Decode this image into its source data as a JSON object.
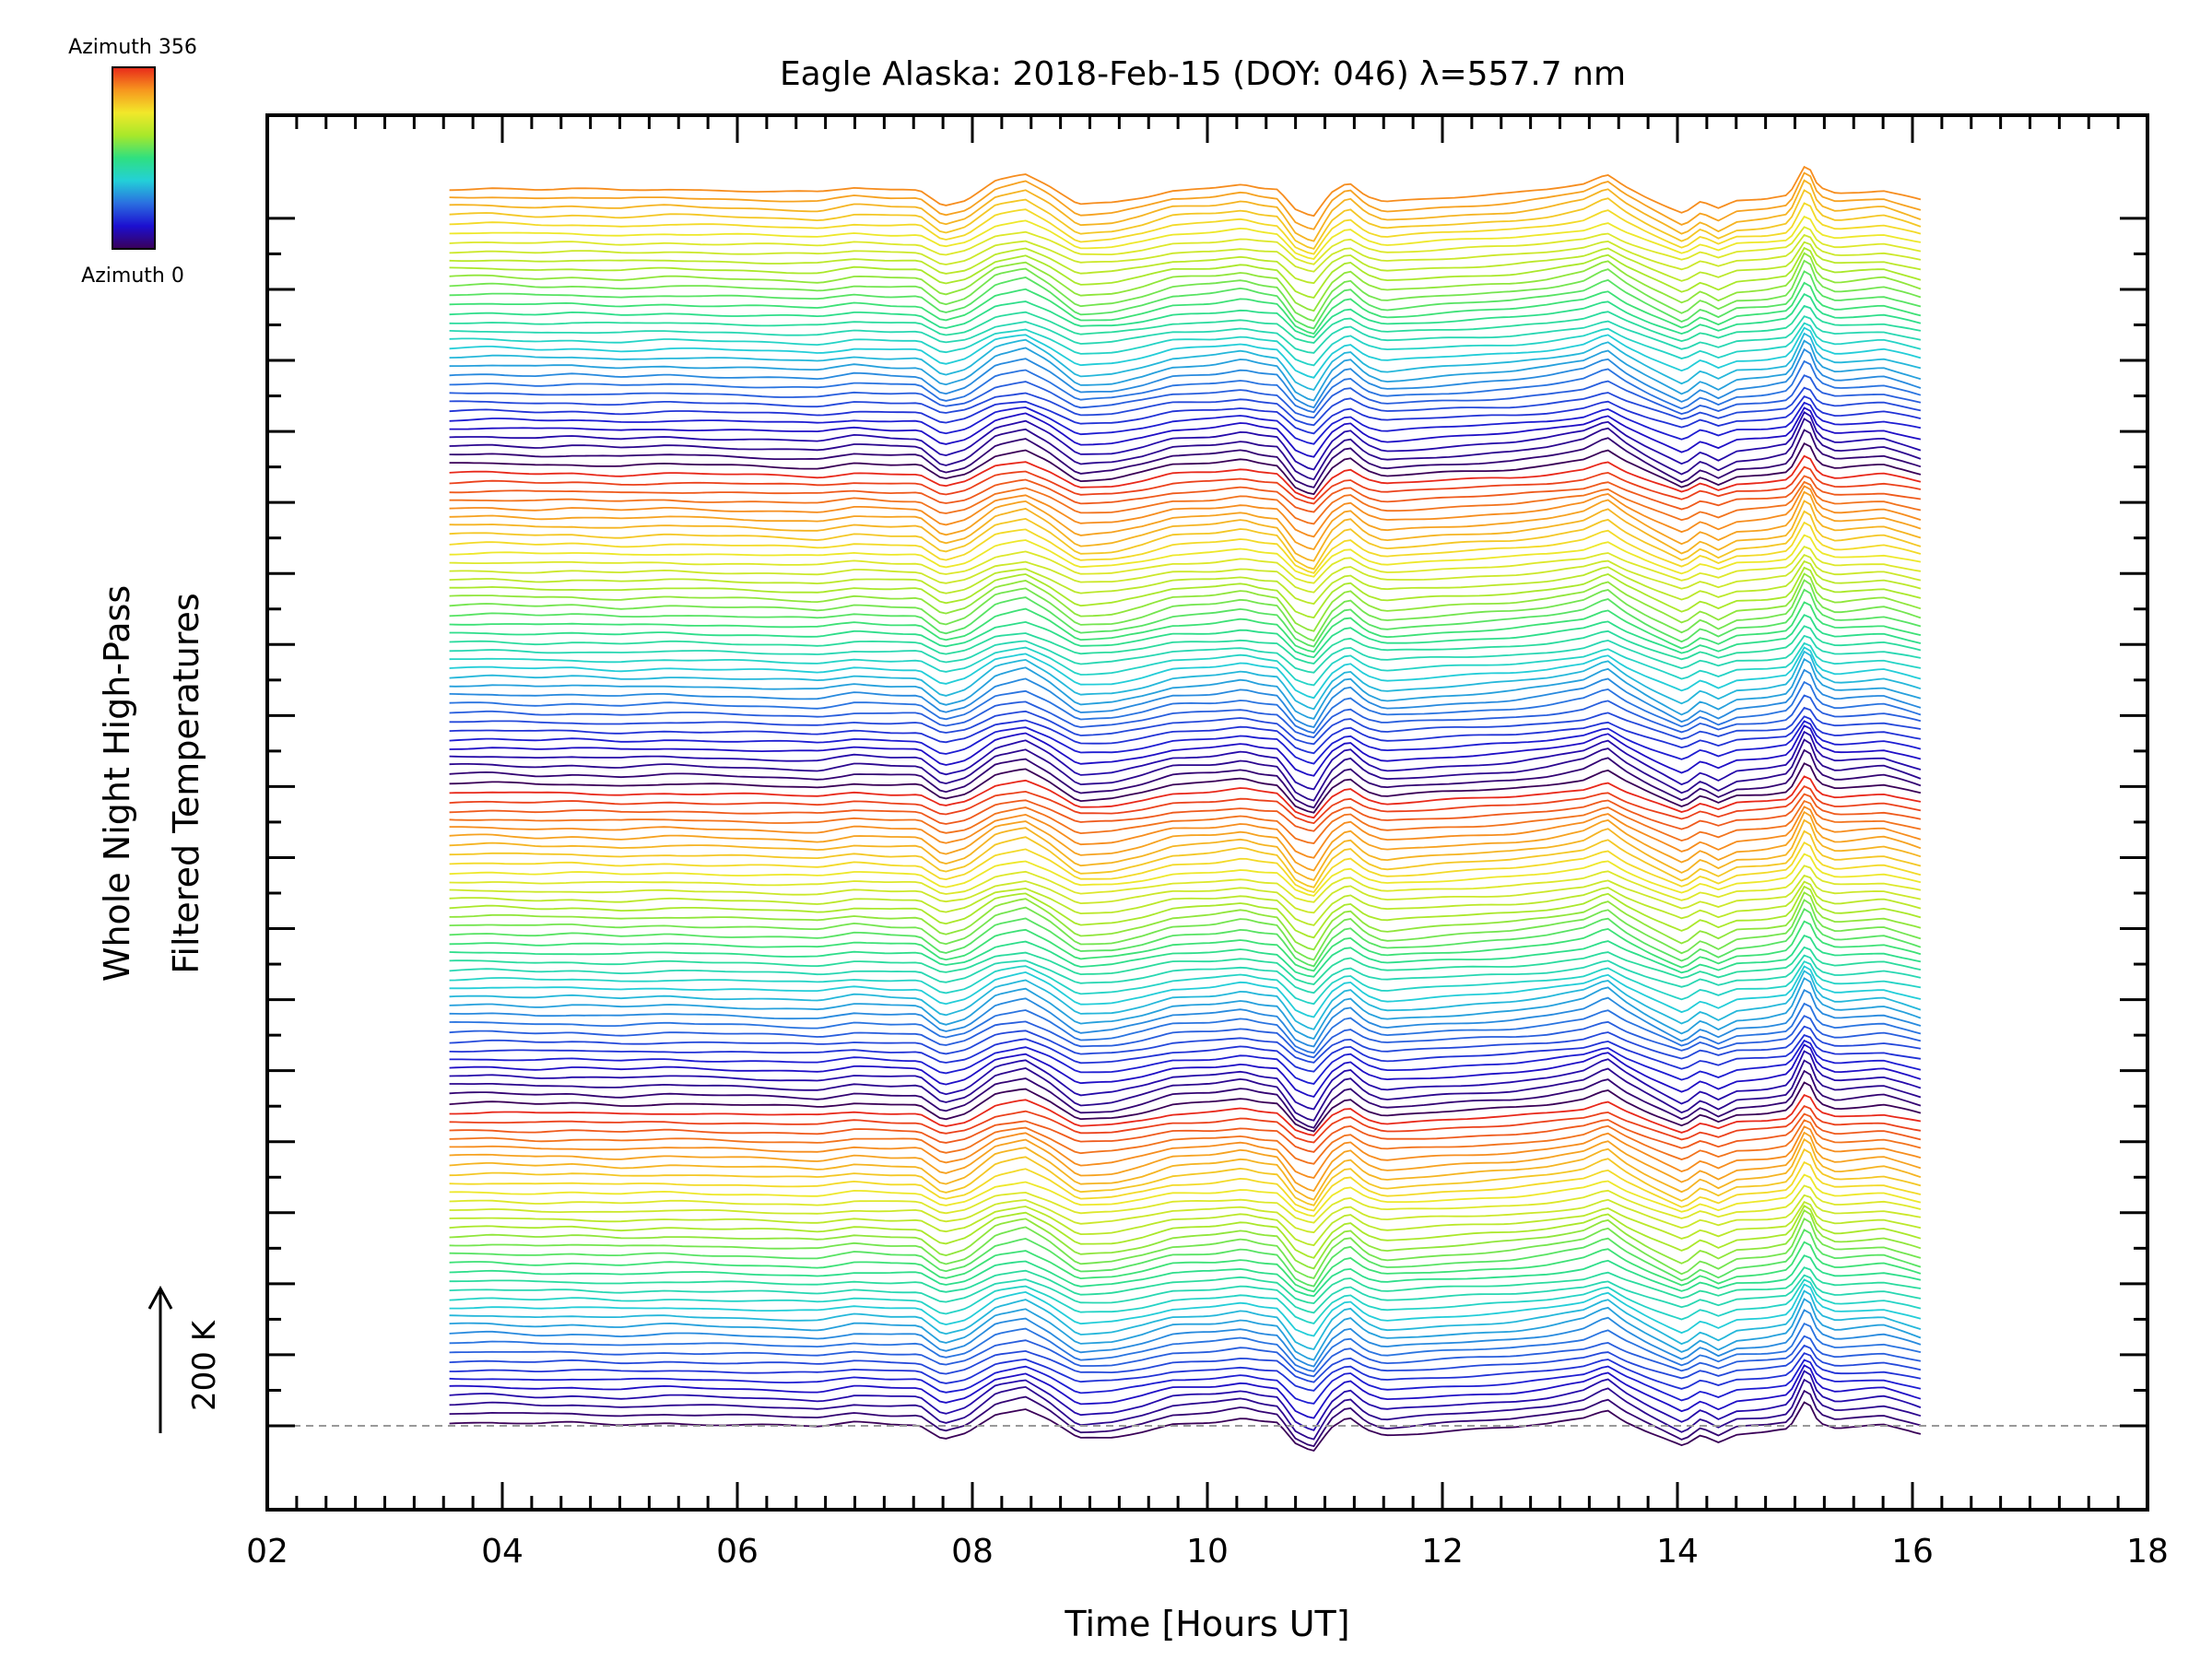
{
  "chart_data": {
    "type": "line",
    "title": "Eagle Alaska: 2018-Feb-15 (DOY: 046) λ=557.7 nm",
    "xlabel": "Time [Hours UT]",
    "ylabel_line1": "Whole Night High-Pass",
    "ylabel_line2": "Filtered Temperatures",
    "xlim": [
      2,
      18
    ],
    "x_ticks": [
      "02",
      "04",
      "06",
      "08",
      "10",
      "12",
      "14",
      "16",
      "18"
    ],
    "colorbar": {
      "top_label": "Azimuth 356",
      "bottom_label": "Azimuth 0",
      "azimuth_min": 0,
      "azimuth_max": 356,
      "colors": [
        "#3a0058",
        "#1c0fd0",
        "#2a6ee0",
        "#23d0d8",
        "#2fe080",
        "#a8e82a",
        "#f2e82a",
        "#f7961e",
        "#e8281a"
      ]
    },
    "scale_bar": {
      "label": "200 K",
      "kelvin": 200
    },
    "trace_count": 140,
    "time_start_hours": 3.55,
    "time_end_hours": 16.07,
    "traces_per_cycle": 36,
    "baseline_dashed": true,
    "series_template": {
      "x": [
        3.55,
        3.9,
        4.3,
        4.6,
        5.0,
        5.4,
        5.7,
        6.1,
        6.4,
        6.7,
        7.0,
        7.3,
        7.55,
        7.75,
        7.95,
        8.2,
        8.45,
        8.65,
        8.9,
        9.2,
        9.45,
        9.7,
        9.85,
        10.05,
        10.3,
        10.45,
        10.6,
        10.75,
        10.9,
        11.05,
        11.2,
        11.35,
        11.5,
        11.75,
        12.0,
        12.3,
        12.6,
        12.9,
        13.2,
        13.4,
        13.55,
        13.75,
        13.9,
        14.05,
        14.2,
        14.35,
        14.5,
        14.75,
        14.95,
        15.1,
        15.2,
        15.35,
        15.55,
        15.75,
        15.95,
        16.07
      ],
      "y": [
        3,
        4,
        2,
        3,
        1,
        3,
        2,
        1,
        0,
        -1,
        4,
        2,
        2,
        -14,
        -8,
        12,
        18,
        6,
        -14,
        -12,
        -6,
        2,
        3,
        4,
        8,
        4,
        2,
        -20,
        -28,
        -2,
        10,
        -4,
        -10,
        -8,
        -6,
        -4,
        -2,
        2,
        8,
        18,
        6,
        -6,
        -14,
        -22,
        -10,
        -18,
        -10,
        -8,
        -4,
        30,
        4,
        -2,
        0,
        2,
        -4,
        -8
      ]
    }
  }
}
